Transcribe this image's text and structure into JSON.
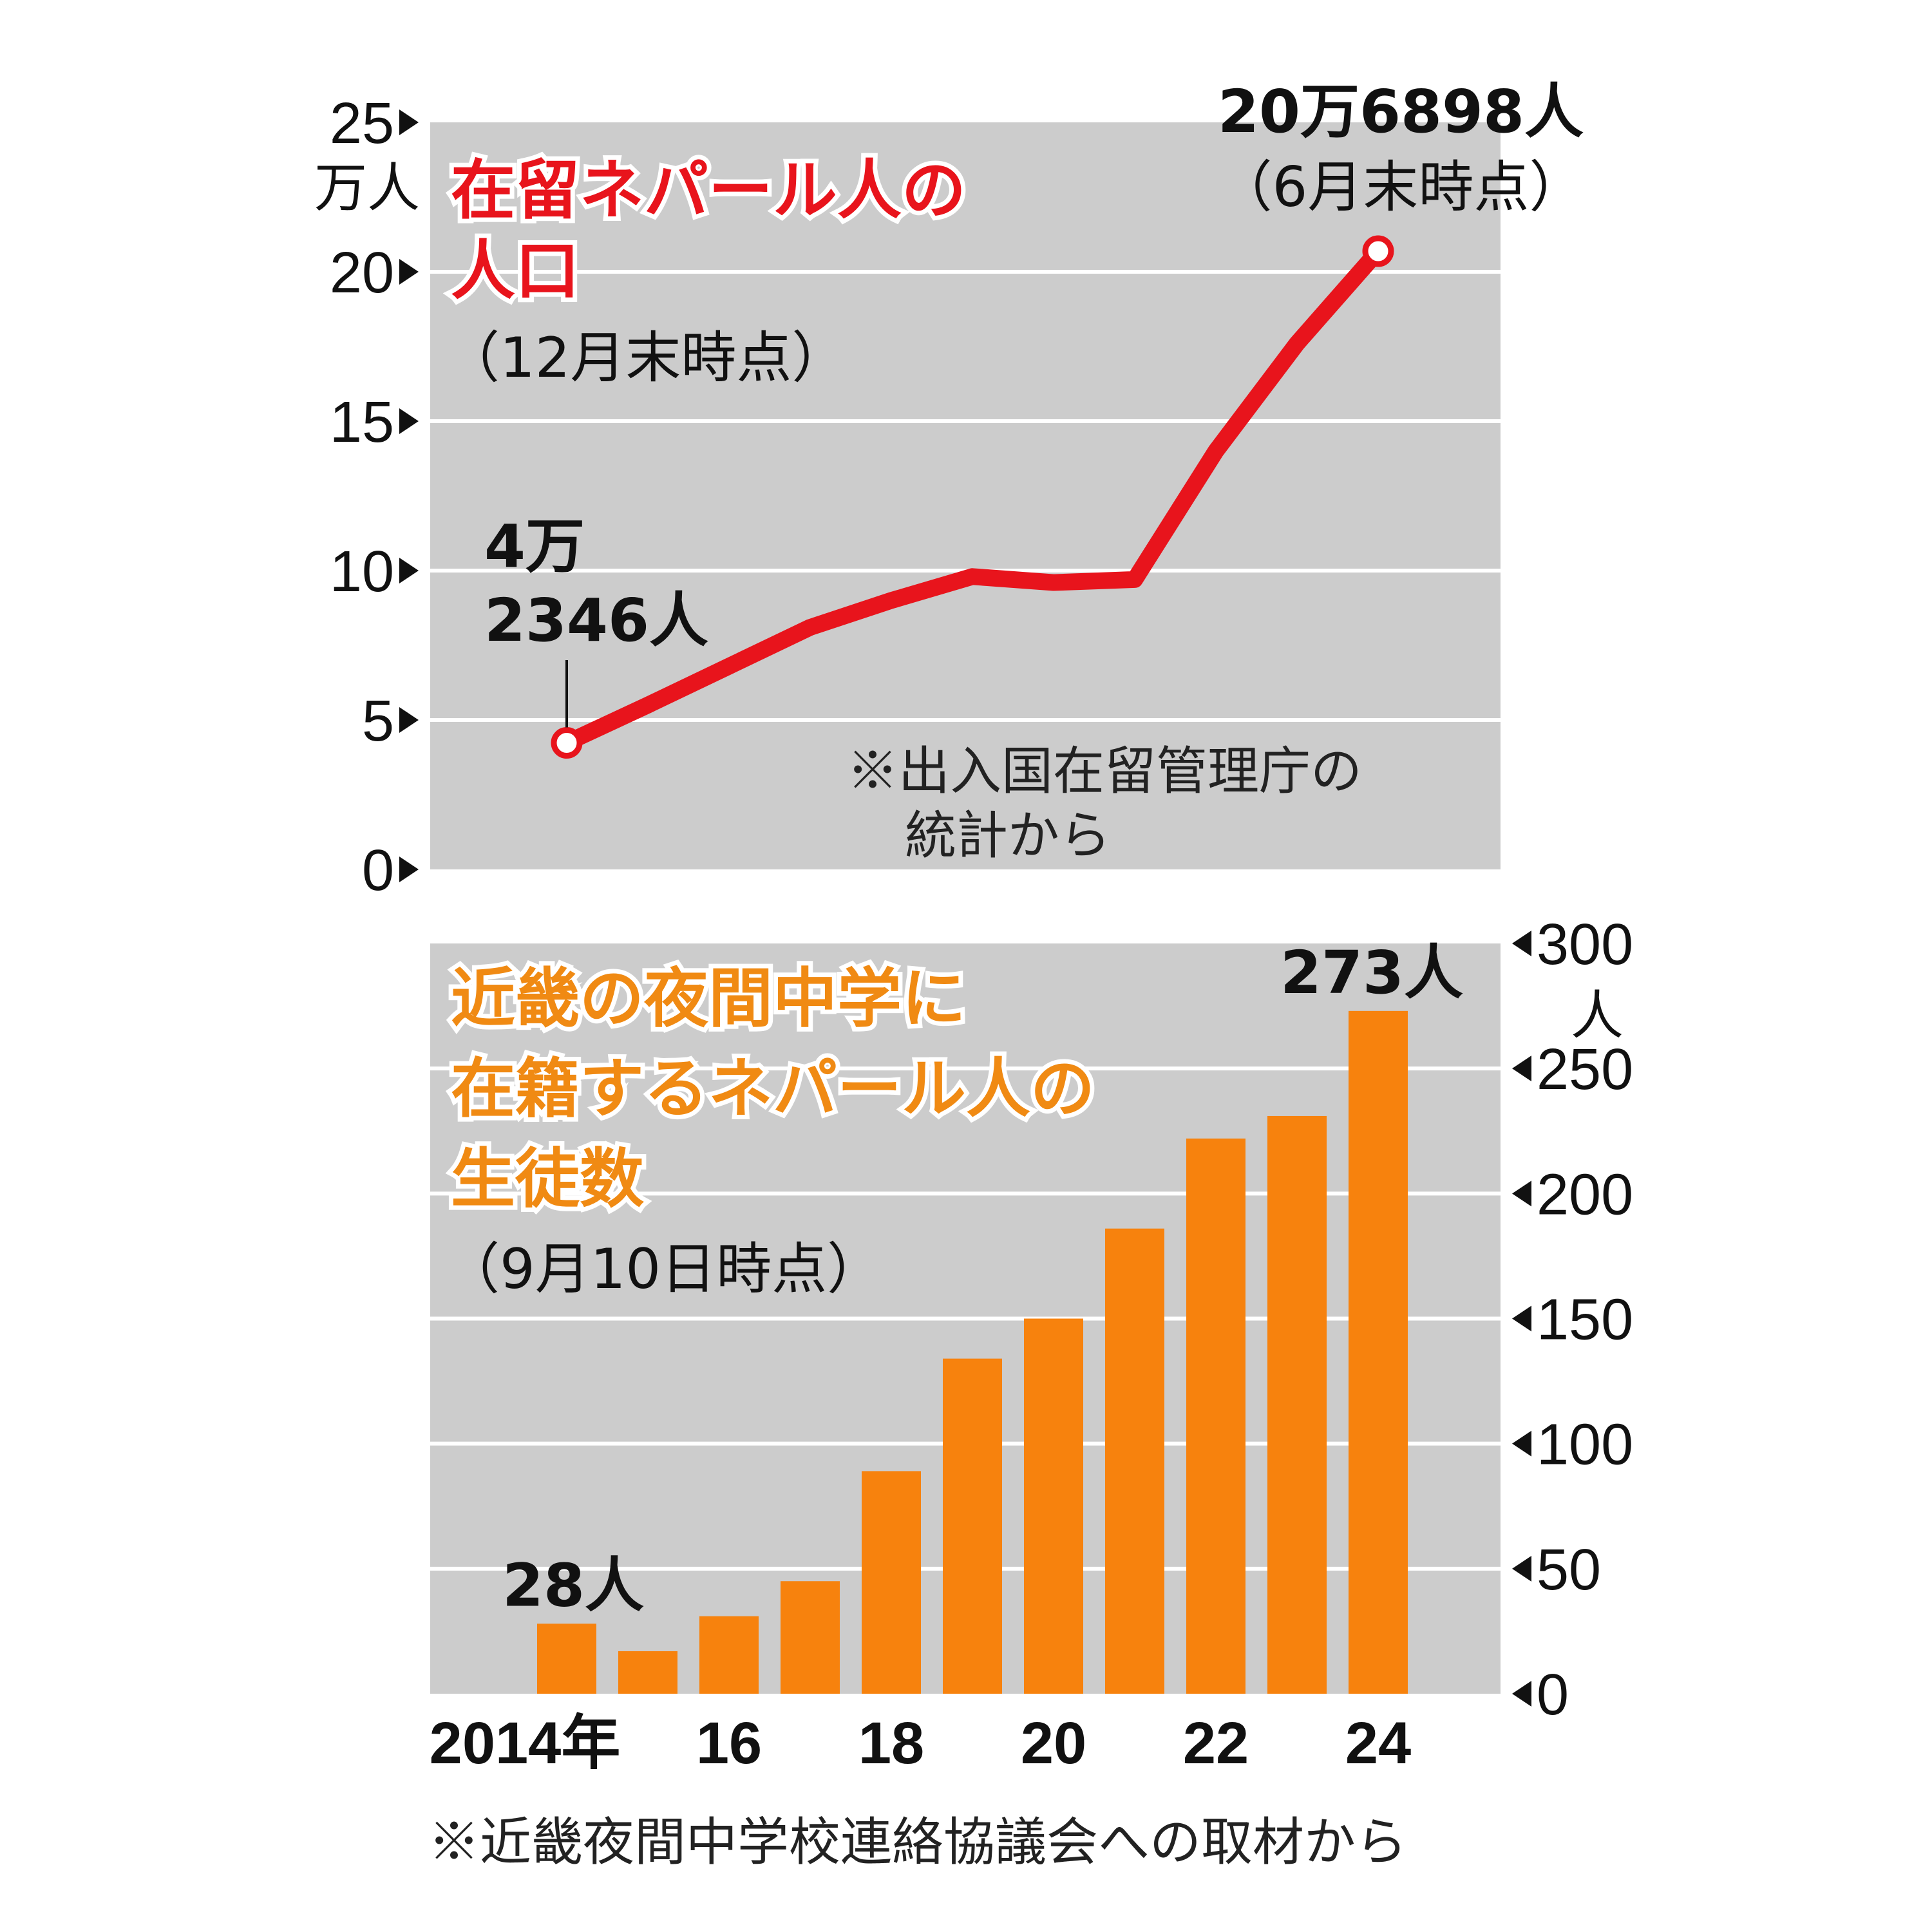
{
  "chart_data": [
    {
      "type": "line",
      "title": "在留ネパール人の",
      "title_line2": "人口",
      "subtitle": "（12月末時点）",
      "y_unit": "万人",
      "ylim": [
        0,
        25
      ],
      "y_ticks": [
        "0",
        "5",
        "10",
        "15",
        "20",
        "25"
      ],
      "x": [
        2014,
        2015,
        2016,
        2017,
        2018,
        2019,
        2020,
        2021,
        2022,
        2023,
        2024
      ],
      "values": [
        4.2346,
        5.5,
        6.8,
        8.1,
        9.0,
        9.8,
        9.6,
        9.7,
        14.0,
        17.6,
        20.6898
      ],
      "annotations": [
        {
          "line1": "4万",
          "line2": "2346人"
        },
        {
          "line1": "20万6898人",
          "line2": "（6月末時点）"
        }
      ],
      "source_line1": "※出入国在留管理庁の",
      "source_line2": "統計から",
      "line_color": "#e8141c"
    },
    {
      "type": "bar",
      "title": "近畿の夜間中学に",
      "title_line2": "在籍するネパール人の",
      "title_line3": "生徒数",
      "subtitle": "（9月10日時点）",
      "y_unit": "人",
      "ylim": [
        0,
        300
      ],
      "y_ticks": [
        "0",
        "50",
        "100",
        "150",
        "200",
        "250",
        "300"
      ],
      "x": [
        2014,
        2015,
        2016,
        2017,
        2018,
        2019,
        2020,
        2021,
        2022,
        2023,
        2024
      ],
      "x_tick_labels": [
        "2014年",
        "16",
        "18",
        "20",
        "22",
        "24"
      ],
      "values": [
        28,
        17,
        31,
        45,
        89,
        134,
        150,
        186,
        222,
        231,
        273
      ],
      "annotations": [
        {
          "text": "28人"
        },
        {
          "text": "273人"
        }
      ],
      "source": "※近畿夜間中学校連絡協議会への取材から",
      "bar_color": "#f7820d"
    }
  ],
  "colors": {
    "panel_bg": "#cccccc",
    "grid": "#ffffff"
  }
}
